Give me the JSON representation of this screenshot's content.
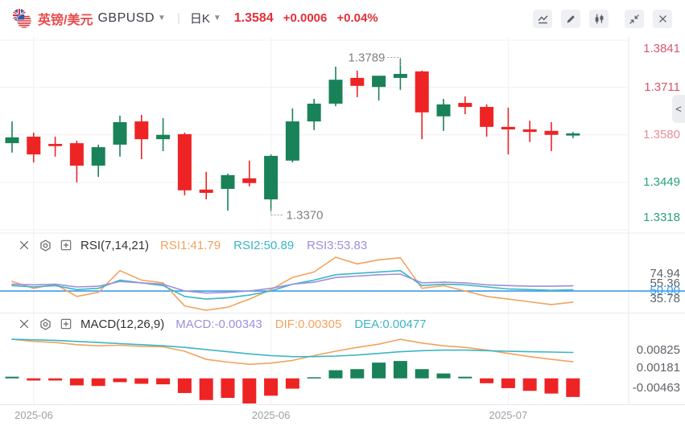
{
  "topbar": {
    "pair_name_cn": "英镑/美元",
    "pair_code": "GBPUSD",
    "timeframe": "日K",
    "last_price": "1.3584",
    "change": "+0.0006",
    "change_percent": "+0.04%"
  },
  "price_axis": {
    "labels": [
      {
        "text": "1.3841",
        "tone": "up"
      },
      {
        "text": "1.3711",
        "tone": "up"
      },
      {
        "text": "1.3580",
        "tone": "current"
      },
      {
        "text": "1.3449",
        "tone": "down"
      },
      {
        "text": "1.3318",
        "tone": "down"
      }
    ],
    "collapse_chevron": "<"
  },
  "rsi_panel": {
    "title": "RSI(7,14,21)",
    "values": [
      {
        "label": "RSI1:41.79",
        "color": "#f2a35f"
      },
      {
        "label": "RSI2:50.89",
        "color": "#3bb6c6"
      },
      {
        "label": "RSI3:53.83",
        "color": "#9c90dc"
      }
    ],
    "axis_labels": [
      "74.94",
      "55.36",
      "35.78"
    ],
    "level_label": "50.00"
  },
  "macd_panel": {
    "title": "MACD(12,26,9)",
    "values": [
      {
        "label": "MACD:-0.00343",
        "color": "#9c90dc"
      },
      {
        "label": "DIF:0.00305",
        "color": "#f2a35f"
      },
      {
        "label": "DEA:0.00477",
        "color": "#3bb6c6"
      }
    ],
    "axis_labels": [
      "0.00825",
      "0.00181",
      "-0.00463"
    ]
  },
  "x_axis": {
    "labels": [
      "2025-06",
      "2025-06",
      "2025-07"
    ]
  },
  "colors": {
    "up_candle": "#1a8258",
    "down_candle": "#ee2424",
    "quote_red": "#e1303a",
    "axis_up_red": "#d5576d",
    "axis_current": "#ea8c9c",
    "axis_down_green": "#27a17b",
    "rsi1_orange": "#f2a35f",
    "rsi2_teal": "#3bb6c6",
    "rsi3_purple": "#9c90dc",
    "level50_blue": "#3e9ce9",
    "grid_gray": "#f0f0f3",
    "annotation_gray": "#808080",
    "pane_label_gray": "#5f6368"
  },
  "chart_data": [
    {
      "type": "candlestick",
      "title": "GBPUSD 日K",
      "y_ticks": [
        1.3841,
        1.3711,
        1.358,
        1.3449,
        1.3318
      ],
      "annotations": {
        "high_label": "1.3789",
        "high_index": 18,
        "low_label": "1.3370",
        "low_index": 12
      },
      "candles_ohlc": [
        [
          1.3557,
          1.3617,
          1.3531,
          1.3573
        ],
        [
          1.3575,
          1.3586,
          1.3504,
          1.3526
        ],
        [
          1.3555,
          1.3575,
          1.352,
          1.3549
        ],
        [
          1.3557,
          1.3564,
          1.3449,
          1.3495
        ],
        [
          1.3495,
          1.3553,
          1.3464,
          1.3546
        ],
        [
          1.3553,
          1.3633,
          1.352,
          1.3615
        ],
        [
          1.3617,
          1.3635,
          1.3513,
          1.3568
        ],
        [
          1.3568,
          1.3626,
          1.3535,
          1.358
        ],
        [
          1.3582,
          1.3586,
          1.3413,
          1.3427
        ],
        [
          1.3429,
          1.3478,
          1.3402,
          1.342
        ],
        [
          1.3431,
          1.3473,
          1.3371,
          1.3469
        ],
        [
          1.346,
          1.3509,
          1.3438,
          1.3447
        ],
        [
          1.3402,
          1.3526,
          1.337,
          1.3522
        ],
        [
          1.3509,
          1.3653,
          1.3504,
          1.3617
        ],
        [
          1.3617,
          1.3679,
          1.3593,
          1.3666
        ],
        [
          1.3666,
          1.3768,
          1.3659,
          1.3732
        ],
        [
          1.3737,
          1.3757,
          1.3684,
          1.3715
        ],
        [
          1.3712,
          1.3743,
          1.3675,
          1.3743
        ],
        [
          1.3737,
          1.3789,
          1.3704,
          1.3748
        ],
        [
          1.3755,
          1.3757,
          1.3568,
          1.3642
        ],
        [
          1.3631,
          1.3679,
          1.3591,
          1.3664
        ],
        [
          1.3668,
          1.3686,
          1.3637,
          1.3657
        ],
        [
          1.3657,
          1.3664,
          1.3575,
          1.3602
        ],
        [
          1.3602,
          1.3655,
          1.3526,
          1.3595
        ],
        [
          1.3595,
          1.3619,
          1.356,
          1.3588
        ],
        [
          1.3591,
          1.3615,
          1.3535,
          1.358
        ],
        [
          1.3578,
          1.3588,
          1.3571,
          1.3584
        ]
      ]
    },
    {
      "type": "line",
      "title": "RSI(7,14,21)",
      "y_range": [
        35.78,
        74.94
      ],
      "level_line": 50,
      "series": [
        {
          "name": "RSI1",
          "current": 41.79,
          "values": [
            57,
            52,
            55,
            46,
            49,
            65,
            58,
            56,
            39,
            35.78,
            38,
            44,
            51,
            60,
            64,
            74.94,
            70,
            73,
            74.5,
            52,
            54,
            50,
            46,
            44,
            42,
            40,
            41.79
          ]
        },
        {
          "name": "RSI2",
          "current": 50.89,
          "values": [
            54,
            53,
            54,
            51,
            52,
            58,
            56,
            54,
            46,
            44,
            45,
            47,
            50,
            55,
            58,
            62,
            63,
            64,
            65,
            54,
            55,
            54.5,
            53,
            51.5,
            51,
            50.5,
            50.89
          ]
        },
        {
          "name": "RSI3",
          "current": 53.83,
          "values": [
            55,
            54.5,
            55,
            53,
            53.5,
            57,
            56,
            55,
            50,
            48.5,
            49,
            50,
            52,
            55,
            56.5,
            60,
            61,
            62,
            62.5,
            56,
            56.5,
            56,
            54.5,
            54,
            53.5,
            53.5,
            53.83
          ]
        }
      ]
    },
    {
      "type": "bar",
      "title": "MACD(12,26,9)",
      "y_range": [
        -0.00463,
        0.00825
      ],
      "histogram": [
        0.0003,
        -0.0004,
        -0.0004,
        -0.0013,
        -0.0014,
        -0.0007,
        -0.001,
        -0.0011,
        -0.0027,
        -0.004,
        -0.0036,
        -0.00463,
        -0.0032,
        -0.0019,
        0.0002,
        0.0015,
        0.0017,
        0.0029,
        0.0032,
        0.0017,
        0.0009,
        0.0003,
        -0.0009,
        -0.0018,
        -0.0023,
        -0.0028,
        -0.00343
      ],
      "series": [
        {
          "name": "DIF",
          "current": 0.00305,
          "values": [
            0.0072,
            0.0068,
            0.0066,
            0.0062,
            0.006,
            0.0061,
            0.0059,
            0.0058,
            0.005,
            0.0035,
            0.003,
            0.0026,
            0.0028,
            0.0033,
            0.0042,
            0.005,
            0.0057,
            0.0063,
            0.0072,
            0.0065,
            0.006,
            0.0057,
            0.0052,
            0.0046,
            0.004,
            0.0035,
            0.00305
          ]
        },
        {
          "name": "DEA",
          "current": 0.00477,
          "values": [
            0.0072,
            0.0071,
            0.007,
            0.0068,
            0.0066,
            0.0064,
            0.0062,
            0.006,
            0.0057,
            0.0053,
            0.0049,
            0.0045,
            0.0042,
            0.004,
            0.004,
            0.0041,
            0.0043,
            0.0046,
            0.0049,
            0.0051,
            0.0052,
            0.0052,
            0.0051,
            0.005,
            0.0049,
            0.00485,
            0.00477
          ]
        }
      ]
    }
  ]
}
